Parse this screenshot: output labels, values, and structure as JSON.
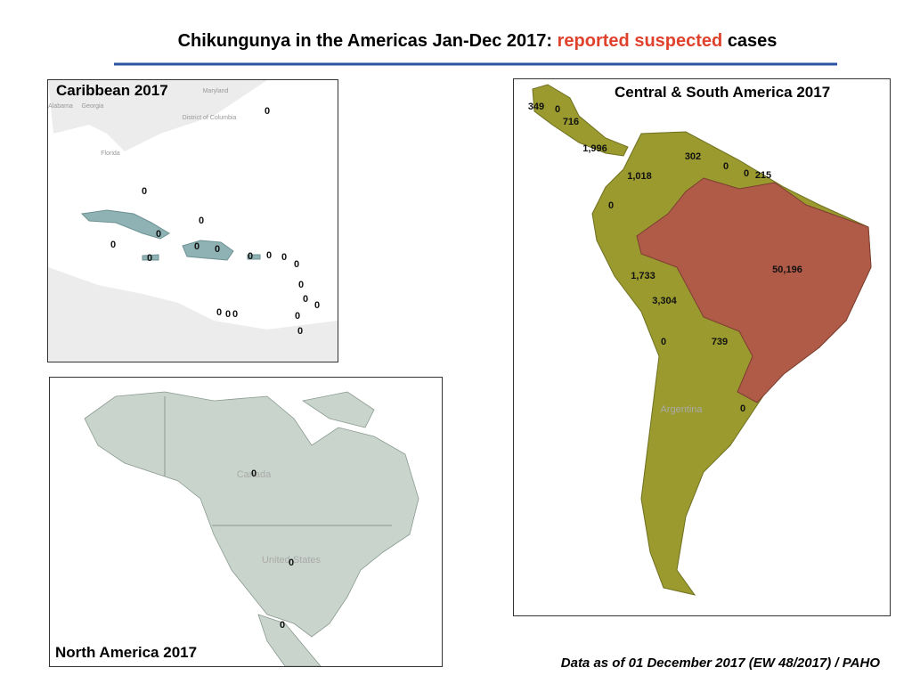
{
  "header": {
    "title_main": "Chikungunya in the Americas Jan-Dec 2017:",
    "title_highlight": "reported suspected",
    "title_end": "cases"
  },
  "caribbean": {
    "title": "Caribbean 2017",
    "place_names": [
      "Maryland",
      "Alabama",
      "Georgia",
      "District of Columbia",
      "Florida"
    ],
    "labels": [
      "0",
      "0",
      "0",
      "0",
      "0",
      "0",
      "0",
      "0",
      "0",
      "0",
      "0",
      "0",
      "0",
      "0",
      "0",
      "0",
      "0",
      "0",
      "0",
      "0"
    ]
  },
  "north_america": {
    "title": "North America 2017",
    "place_names": [
      "Canada",
      "United States"
    ],
    "labels": [
      "0",
      "0",
      "0"
    ]
  },
  "central_south": {
    "title": "Central & South America  2017",
    "place_names": [
      "Argentina"
    ],
    "labels": [
      "349",
      "0",
      "716",
      "1,996",
      "1,018",
      "302",
      "0",
      "0",
      "215",
      "0",
      "1,733",
      "3,304",
      "50,196",
      "0",
      "739",
      "0"
    ]
  },
  "footer": {
    "source": "Data as of 01 December 2017 (EW 48/2017) / PAHO"
  }
}
